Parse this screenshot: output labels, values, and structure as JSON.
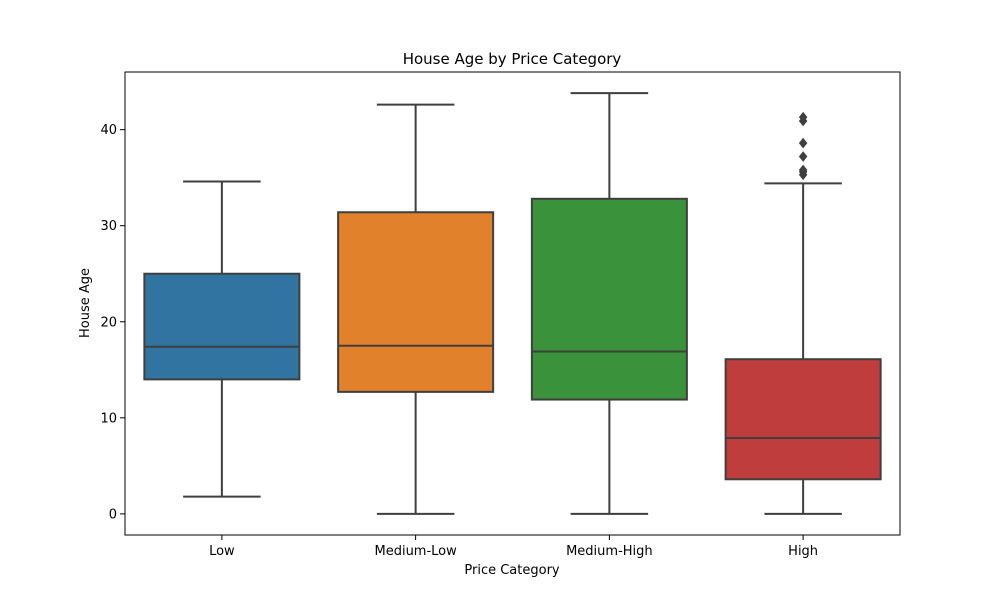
{
  "chart_data": {
    "type": "box",
    "title": "House Age by Price Category",
    "xlabel": "Price Category",
    "ylabel": "House Age",
    "categories": [
      "Low",
      "Medium-Low",
      "Medium-High",
      "High"
    ],
    "colors": [
      "#3274a1",
      "#e1812c",
      "#3a923a",
      "#c03d3e"
    ],
    "ylim": [
      -2.2,
      46
    ],
    "yticks": [
      0,
      10,
      20,
      30,
      40
    ],
    "grid": false,
    "legend": "none",
    "boxes": [
      {
        "category": "Low",
        "whisker_low": 1.8,
        "q1": 14.0,
        "median": 17.4,
        "q3": 25.0,
        "whisker_high": 34.6,
        "outliers": []
      },
      {
        "category": "Medium-Low",
        "whisker_low": 0.0,
        "q1": 12.7,
        "median": 17.5,
        "q3": 31.4,
        "whisker_high": 42.6,
        "outliers": []
      },
      {
        "category": "Medium-High",
        "whisker_low": 0.0,
        "q1": 11.9,
        "median": 16.9,
        "q3": 32.8,
        "whisker_high": 43.8,
        "outliers": []
      },
      {
        "category": "High",
        "whisker_low": 0.0,
        "q1": 3.6,
        "median": 7.9,
        "q3": 16.1,
        "whisker_high": 34.4,
        "outliers": [
          35.3,
          35.6,
          35.8,
          37.2,
          38.6,
          40.9,
          41.3
        ]
      }
    ]
  }
}
